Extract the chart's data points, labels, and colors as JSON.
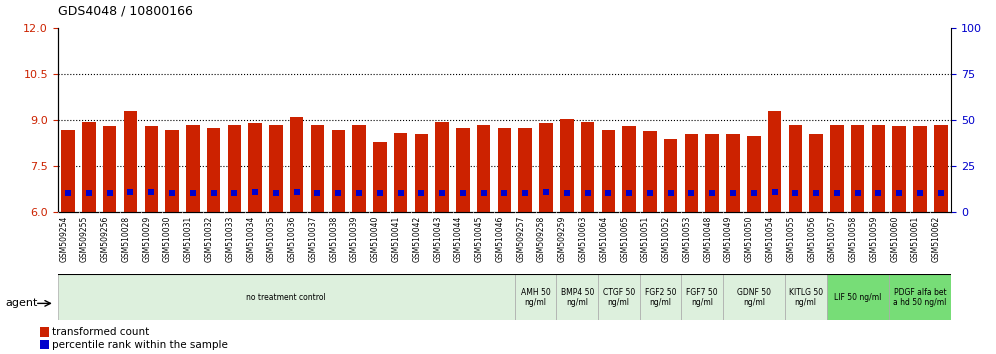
{
  "title": "GDS4048 / 10800166",
  "bar_color": "#cc2200",
  "dot_color": "#0000cc",
  "bar_bottom": 6,
  "ylim_left": [
    6,
    12
  ],
  "ylim_right": [
    0,
    100
  ],
  "yticks_left": [
    6,
    7.5,
    9,
    10.5,
    12
  ],
  "yticks_right": [
    0,
    25,
    50,
    75,
    100
  ],
  "hlines": [
    7.5,
    9,
    10.5
  ],
  "categories": [
    "GSM509254",
    "GSM509255",
    "GSM509256",
    "GSM510028",
    "GSM510029",
    "GSM510030",
    "GSM510031",
    "GSM510032",
    "GSM510033",
    "GSM510034",
    "GSM510035",
    "GSM510036",
    "GSM510037",
    "GSM510038",
    "GSM510039",
    "GSM510040",
    "GSM510041",
    "GSM510042",
    "GSM510043",
    "GSM510044",
    "GSM510045",
    "GSM510046",
    "GSM509257",
    "GSM509258",
    "GSM509259",
    "GSM510063",
    "GSM510064",
    "GSM510065",
    "GSM510051",
    "GSM510052",
    "GSM510053",
    "GSM510048",
    "GSM510049",
    "GSM510050",
    "GSM510054",
    "GSM510055",
    "GSM510056",
    "GSM510057",
    "GSM510058",
    "GSM510059",
    "GSM510060",
    "GSM510061",
    "GSM510062"
  ],
  "bar_values": [
    8.7,
    8.95,
    8.8,
    9.3,
    8.8,
    8.7,
    8.85,
    8.75,
    8.85,
    8.9,
    8.85,
    9.1,
    8.85,
    8.7,
    8.85,
    8.3,
    8.6,
    8.55,
    8.95,
    8.75,
    8.85,
    8.75,
    8.75,
    8.9,
    9.05,
    8.95,
    8.7,
    8.8,
    8.65,
    8.4,
    8.55,
    8.55,
    8.55,
    8.5,
    9.3,
    8.85,
    8.55,
    8.85,
    8.85,
    8.85,
    8.8,
    8.8,
    8.85
  ],
  "dot_values": [
    10.6,
    10.7,
    10.55,
    11.1,
    10.95,
    10.75,
    10.8,
    10.75,
    10.8,
    10.85,
    10.6,
    10.85,
    10.75,
    10.6,
    10.55,
    10.5,
    10.7,
    10.65,
    10.8,
    10.55,
    10.8,
    10.7,
    10.5,
    11.0,
    10.7,
    10.65,
    10.75,
    10.6,
    10.55,
    10.5,
    10.55,
    10.55,
    10.6,
    10.6,
    10.9,
    10.65,
    10.7,
    10.75,
    10.8,
    10.8,
    10.75,
    10.8,
    10.75
  ],
  "groups": [
    {
      "label": "no treatment control",
      "start": 0,
      "end": 22,
      "color": "#ddf0dd",
      "bright": false
    },
    {
      "label": "AMH 50\nng/ml",
      "start": 22,
      "end": 24,
      "color": "#ddf0dd",
      "bright": false
    },
    {
      "label": "BMP4 50\nng/ml",
      "start": 24,
      "end": 26,
      "color": "#ddf0dd",
      "bright": false
    },
    {
      "label": "CTGF 50\nng/ml",
      "start": 26,
      "end": 28,
      "color": "#ddf0dd",
      "bright": false
    },
    {
      "label": "FGF2 50\nng/ml",
      "start": 28,
      "end": 30,
      "color": "#ddf0dd",
      "bright": false
    },
    {
      "label": "FGF7 50\nng/ml",
      "start": 30,
      "end": 32,
      "color": "#ddf0dd",
      "bright": false
    },
    {
      "label": "GDNF 50\nng/ml",
      "start": 32,
      "end": 35,
      "color": "#ddf0dd",
      "bright": false
    },
    {
      "label": "KITLG 50\nng/ml",
      "start": 35,
      "end": 37,
      "color": "#ddf0dd",
      "bright": false
    },
    {
      "label": "LIF 50 ng/ml",
      "start": 37,
      "end": 40,
      "color": "#77dd77",
      "bright": true
    },
    {
      "label": "PDGF alfa bet\na hd 50 ng/ml",
      "start": 40,
      "end": 43,
      "color": "#77dd77",
      "bright": true
    }
  ],
  "xtick_bg": "#d0d0d0",
  "legend_bar_label": "transformed count",
  "legend_dot_label": "percentile rank within the sample",
  "agent_label": "agent"
}
